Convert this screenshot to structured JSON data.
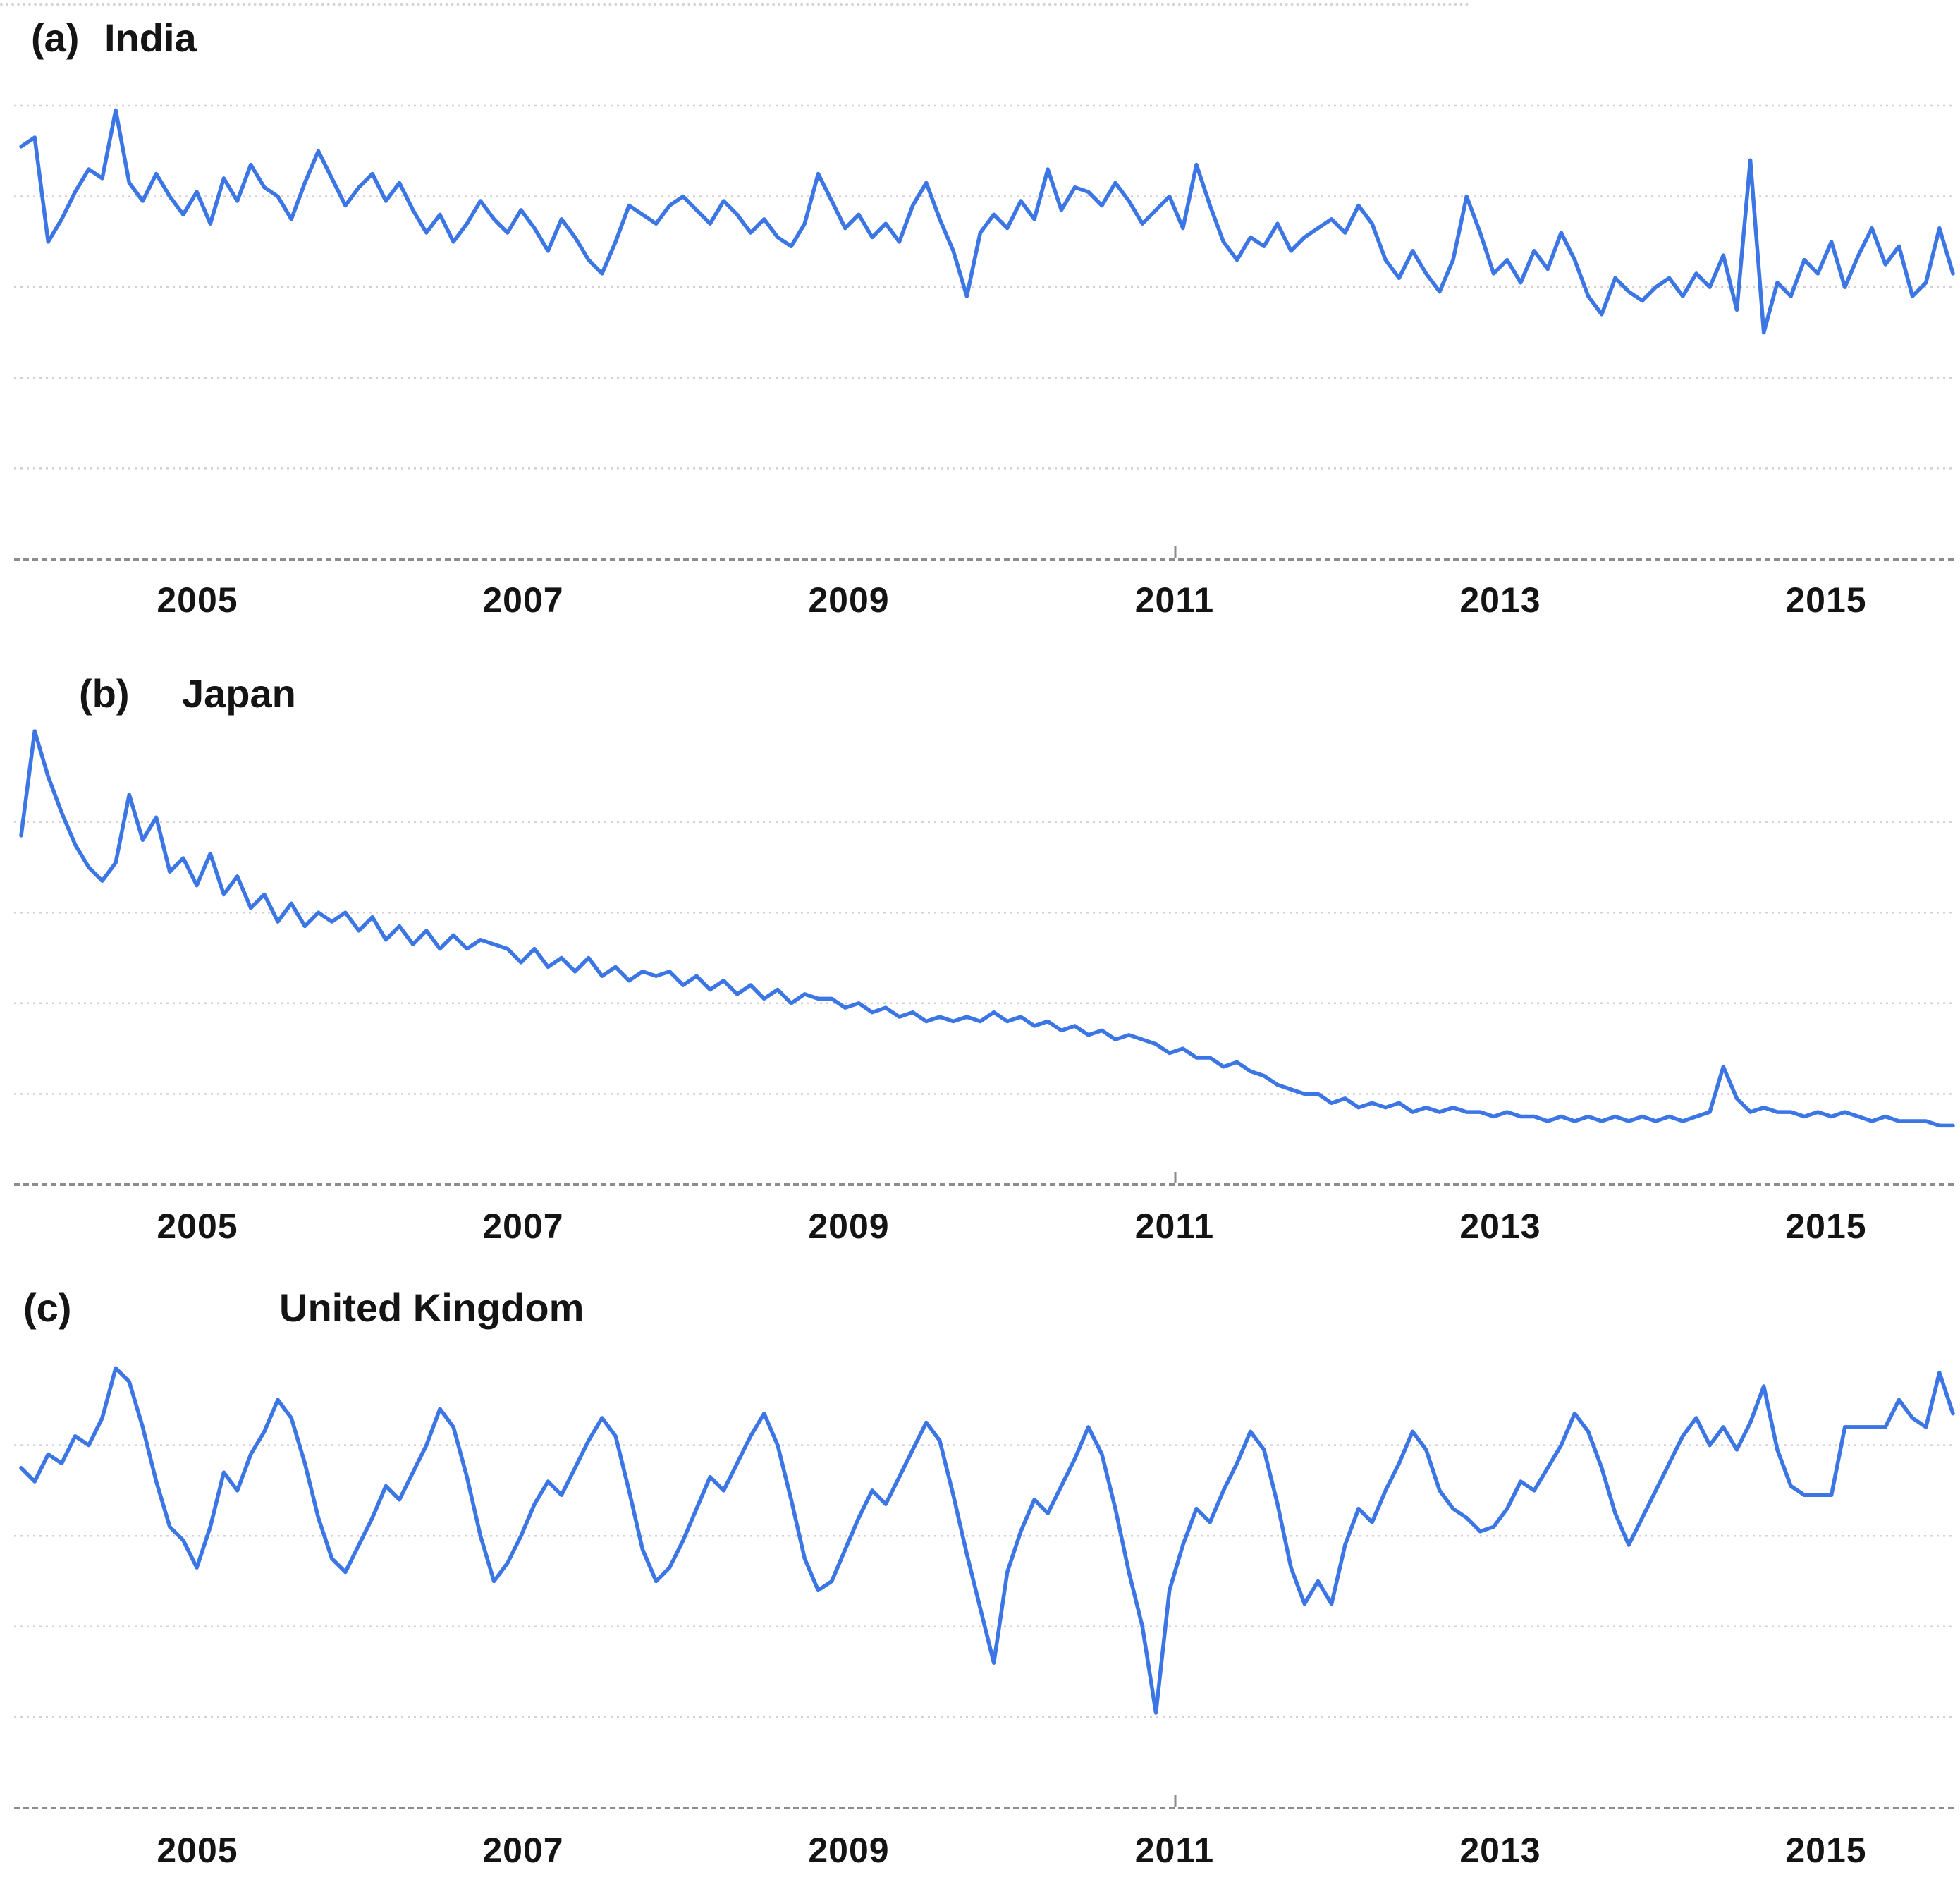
{
  "figure": {
    "description": "Three stacked line charts of search interest over time",
    "background_color": "#ffffff"
  },
  "styles": {
    "line_color": "#3C76E4",
    "grid_color": "#d8cdd0",
    "axis_color": "#8e8a8e",
    "text_color": "#141414"
  },
  "chart_data": [
    {
      "type": "line",
      "panel_label": "(a)",
      "title": "India",
      "x_tick_labels": [
        "2005",
        "2007",
        "2009",
        "2011",
        "2013",
        "2015"
      ],
      "x_start": "2004-01",
      "x_end": "2015-12",
      "points_per_year": 12,
      "ylim": [
        0,
        100
      ],
      "gridline_values": [
        20,
        40,
        60,
        80,
        100
      ],
      "grid_on": true,
      "legend_position": "none",
      "values": [
        91,
        93,
        70,
        75,
        81,
        86,
        84,
        99,
        83,
        79,
        85,
        80,
        76,
        81,
        74,
        84,
        79,
        87,
        82,
        80,
        75,
        83,
        90,
        84,
        78,
        82,
        85,
        79,
        83,
        77,
        72,
        76,
        70,
        74,
        79,
        75,
        72,
        77,
        73,
        68,
        75,
        71,
        66,
        63,
        70,
        78,
        76,
        74,
        78,
        80,
        77,
        74,
        79,
        76,
        72,
        75,
        71,
        69,
        74,
        85,
        79,
        73,
        76,
        71,
        74,
        70,
        78,
        83,
        75,
        68,
        58,
        72,
        76,
        73,
        79,
        75,
        86,
        77,
        82,
        81,
        78,
        83,
        79,
        74,
        77,
        80,
        73,
        87,
        78,
        70,
        66,
        71,
        69,
        74,
        68,
        71,
        73,
        75,
        72,
        78,
        74,
        66,
        62,
        68,
        63,
        59,
        66,
        80,
        72,
        63,
        66,
        61,
        68,
        64,
        72,
        66,
        58,
        54,
        62,
        59,
        57,
        60,
        62,
        58,
        63,
        60,
        67,
        55,
        88,
        50,
        61,
        58,
        66,
        63,
        70,
        60,
        67,
        73,
        65,
        69,
        58,
        61,
        73,
        63
      ]
    },
    {
      "type": "line",
      "panel_label": "(b)",
      "title": "Japan",
      "x_tick_labels": [
        "2005",
        "2007",
        "2009",
        "2011",
        "2013",
        "2015"
      ],
      "x_start": "2004-01",
      "x_end": "2015-12",
      "points_per_year": 12,
      "ylim": [
        0,
        100
      ],
      "gridline_values": [
        20,
        40,
        60,
        80
      ],
      "grid_on": true,
      "legend_position": "none",
      "values": [
        77,
        100,
        90,
        82,
        75,
        70,
        67,
        71,
        86,
        76,
        81,
        69,
        72,
        66,
        73,
        64,
        68,
        61,
        64,
        58,
        62,
        57,
        60,
        58,
        60,
        56,
        59,
        54,
        57,
        53,
        56,
        52,
        55,
        52,
        54,
        53,
        52,
        49,
        52,
        48,
        50,
        47,
        50,
        46,
        48,
        45,
        47,
        46,
        47,
        44,
        46,
        43,
        45,
        42,
        44,
        41,
        43,
        40,
        42,
        41,
        41,
        39,
        40,
        38,
        39,
        37,
        38,
        36,
        37,
        36,
        37,
        36,
        38,
        36,
        37,
        35,
        36,
        34,
        35,
        33,
        34,
        32,
        33,
        32,
        31,
        29,
        30,
        28,
        28,
        26,
        27,
        25,
        24,
        22,
        21,
        20,
        20,
        18,
        19,
        17,
        18,
        17,
        18,
        16,
        17,
        16,
        17,
        16,
        16,
        15,
        16,
        15,
        15,
        14,
        15,
        14,
        15,
        14,
        15,
        14,
        15,
        14,
        15,
        14,
        15,
        16,
        26,
        19,
        16,
        17,
        16,
        16,
        15,
        16,
        15,
        16,
        15,
        14,
        15,
        14,
        14,
        14,
        13,
        13
      ]
    },
    {
      "type": "line",
      "panel_label": "(c)",
      "title": "United Kingdom",
      "x_tick_labels": [
        "2005",
        "2007",
        "2009",
        "2011",
        "2013",
        "2015"
      ],
      "x_start": "2004-01",
      "x_end": "2015-12",
      "points_per_year": 12,
      "ylim": [
        0,
        100
      ],
      "gridline_values": [
        20,
        40,
        60,
        80
      ],
      "grid_on": true,
      "legend_position": "none",
      "values": [
        75,
        72,
        78,
        76,
        82,
        80,
        86,
        97,
        94,
        84,
        72,
        62,
        59,
        53,
        62,
        74,
        70,
        78,
        83,
        90,
        86,
        76,
        64,
        55,
        52,
        58,
        64,
        71,
        68,
        74,
        80,
        88,
        84,
        73,
        60,
        50,
        54,
        60,
        67,
        72,
        69,
        75,
        81,
        86,
        82,
        70,
        57,
        50,
        53,
        59,
        66,
        73,
        70,
        76,
        82,
        87,
        80,
        68,
        55,
        48,
        50,
        57,
        64,
        70,
        67,
        73,
        79,
        85,
        81,
        69,
        56,
        44,
        32,
        52,
        61,
        68,
        65,
        71,
        77,
        84,
        78,
        66,
        52,
        40,
        21,
        48,
        58,
        66,
        63,
        70,
        76,
        83,
        79,
        67,
        53,
        45,
        50,
        45,
        58,
        66,
        63,
        70,
        76,
        83,
        79,
        70,
        66,
        64,
        61,
        62,
        66,
        72,
        70,
        75,
        80,
        87,
        83,
        75,
        65,
        58,
        64,
        70,
        76,
        82,
        86,
        80,
        84,
        79,
        85,
        93,
        79,
        71,
        69,
        69,
        69,
        84,
        84,
        84,
        84,
        90,
        86,
        84,
        96,
        87
      ]
    }
  ]
}
